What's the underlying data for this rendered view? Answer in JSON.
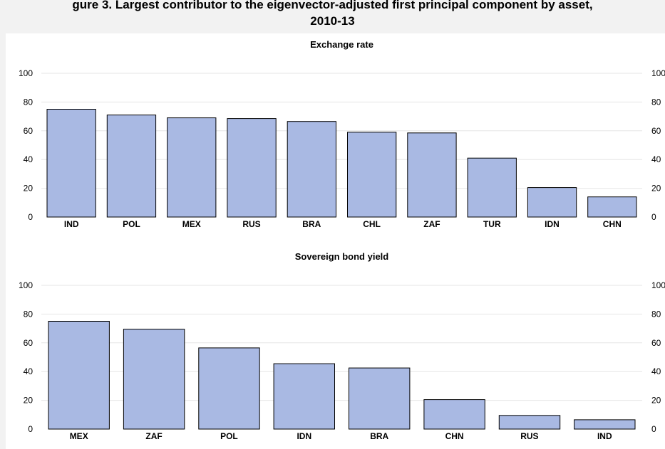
{
  "figure": {
    "title_line1": "gure 3. Largest contributor to the eigenvector-adjusted first principal component by asset,",
    "title_line2": "2010-13"
  },
  "colors": {
    "bar_fill": "#a9b9e3",
    "bar_stroke": "#000000",
    "grid": "#e6e6e6"
  },
  "chart_data": [
    {
      "type": "bar",
      "title": "Exchange rate",
      "categories": [
        "IND",
        "POL",
        "MEX",
        "RUS",
        "BRA",
        "CHL",
        "ZAF",
        "TUR",
        "IDN",
        "CHN"
      ],
      "values": [
        75,
        71,
        69,
        68.5,
        66.5,
        59,
        58.5,
        41,
        20.5,
        14
      ],
      "ylim": [
        0,
        100
      ],
      "yticks": [
        "0",
        "20",
        "40",
        "60",
        "80",
        "100"
      ],
      "grid": true,
      "xlabel": "",
      "ylabel": ""
    },
    {
      "type": "bar",
      "title": "Sovereign bond yield",
      "categories": [
        "MEX",
        "ZAF",
        "POL",
        "IDN",
        "BRA",
        "CHN",
        "RUS",
        "IND"
      ],
      "values": [
        75,
        69.5,
        56.5,
        45.5,
        42.5,
        20.5,
        9.5,
        6.5
      ],
      "ylim": [
        0,
        100
      ],
      "yticks": [
        "0",
        "20",
        "40",
        "60",
        "80",
        "100"
      ],
      "grid": true,
      "xlabel": "",
      "ylabel": ""
    }
  ]
}
